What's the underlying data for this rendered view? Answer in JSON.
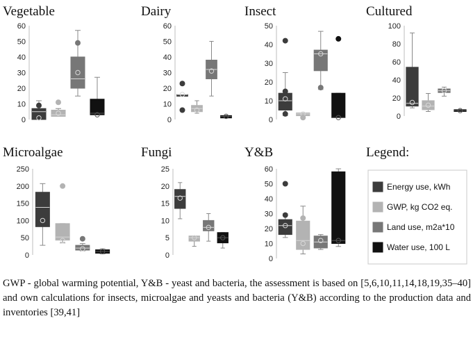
{
  "legend": {
    "title": "Legend:",
    "entries": [
      {
        "label": "Energy use, kWh",
        "color": "#3c3c3c"
      },
      {
        "label": "GWP, kg CO2 eq.",
        "color": "#b3b3b3"
      },
      {
        "label": "Land use, m2a*10",
        "color": "#777777"
      },
      {
        "label": "Water use, 100 L",
        "color": "#111111"
      }
    ]
  },
  "caption": "GWP - global warming potential, Y&B - yeast and bacteria, the assessment is based on [5,6,10,11,14,18,19,35–40] and own calculations for insects, microalgae and yeasts and bacteria (Y&B) according to the production data and inventories [39,41]",
  "chart_data": [
    {
      "type": "box",
      "title": "Vegetable",
      "ylim": [
        0,
        60
      ],
      "yticks": [
        "0",
        "10",
        "20",
        "30",
        "40",
        "50",
        "60"
      ],
      "boxes": [
        {
          "min": 0,
          "q1": 0,
          "median": 5,
          "q3": 7,
          "max": 12,
          "mean": 1,
          "outliers": [
            9
          ]
        },
        {
          "min": 2,
          "q1": 2,
          "median": 3,
          "q3": 6,
          "max": 7,
          "mean": 4,
          "outliers": [
            11
          ]
        },
        {
          "min": 15,
          "q1": 20,
          "median": 26,
          "q3": 40,
          "max": 57,
          "mean": 30,
          "outliers": [
            49
          ]
        },
        {
          "min": 3,
          "q1": 3,
          "median": 4,
          "q3": 13,
          "max": 27,
          "mean": 3,
          "outliers": []
        }
      ]
    },
    {
      "type": "box",
      "title": "Dairy",
      "ylim": [
        0,
        60
      ],
      "yticks": [
        "0",
        "10",
        "20",
        "30",
        "40",
        "50",
        "60"
      ],
      "boxes": [
        {
          "min": 16,
          "q1": 16,
          "median": 16,
          "q3": 16,
          "max": 16,
          "mean": 16,
          "outliers": [
            23,
            6
          ]
        },
        {
          "min": 4,
          "q1": 5,
          "median": 7,
          "q3": 9,
          "max": 12,
          "mean": 6,
          "outliers": []
        },
        {
          "min": 15,
          "q1": 26,
          "median": 32,
          "q3": 38,
          "max": 50,
          "mean": 31,
          "outliers": []
        },
        {
          "min": 1,
          "q1": 1,
          "median": 2,
          "q3": 2.5,
          "max": 2.5,
          "mean": 2,
          "outliers": []
        }
      ]
    },
    {
      "type": "box",
      "title": "Insect",
      "ylim": [
        0,
        50
      ],
      "yticks": [
        "0",
        "10",
        "20",
        "30",
        "40",
        "50"
      ],
      "boxes": [
        {
          "min": 2,
          "q1": 5,
          "median": 10,
          "q3": 14,
          "max": 25,
          "mean": 11,
          "outliers": [
            42,
            15,
            3
          ]
        },
        {
          "min": 2,
          "q1": 2,
          "median": 3,
          "q3": 3.5,
          "max": 3.5,
          "mean": 3,
          "outliers": [
            1
          ]
        },
        {
          "min": 16,
          "q1": 26,
          "median": 35,
          "q3": 37,
          "max": 47,
          "mean": 35,
          "outliers": [
            17
          ]
        },
        {
          "min": 1,
          "q1": 1,
          "median": 1,
          "q3": 14,
          "max": 14,
          "mean": 1,
          "outliers": [
            43
          ]
        }
      ]
    },
    {
      "type": "box",
      "title": "Cultured",
      "ylim": [
        0,
        100
      ],
      "yticks": [
        "0",
        "20",
        "40",
        "60",
        "80",
        "100"
      ],
      "boxes": [
        {
          "min": 9,
          "q1": 11,
          "median": 14,
          "q3": 54,
          "max": 92,
          "mean": 15,
          "outliers": []
        },
        {
          "min": 5,
          "q1": 7,
          "median": 11,
          "q3": 17,
          "max": 25,
          "mean": 12,
          "outliers": []
        },
        {
          "min": 22,
          "q1": 26,
          "median": 28,
          "q3": 30,
          "max": 32,
          "mean": 28,
          "outliers": []
        },
        {
          "min": 5,
          "q1": 5,
          "median": 6,
          "q3": 7,
          "max": 7,
          "mean": 6,
          "outliers": []
        }
      ]
    },
    {
      "type": "box",
      "title": "Microalgae",
      "ylim": [
        0,
        250
      ],
      "yticks": [
        "0",
        "50",
        "100",
        "150",
        "200",
        "250"
      ],
      "boxes": [
        {
          "min": 28,
          "q1": 82,
          "median": 138,
          "q3": 182,
          "max": 207,
          "mean": 100,
          "outliers": []
        },
        {
          "min": 35,
          "q1": 43,
          "median": 52,
          "q3": 91,
          "max": 91,
          "mean": 42,
          "outliers": [
            200
          ]
        },
        {
          "min": 12,
          "q1": 14,
          "median": 20,
          "q3": 28,
          "max": 33,
          "mean": 18,
          "outliers": [
            47
          ]
        },
        {
          "min": 3,
          "q1": 5,
          "median": 10,
          "q3": 15,
          "max": 18,
          "mean": 10,
          "outliers": []
        }
      ]
    },
    {
      "type": "box",
      "title": "Fungi",
      "ylim": [
        0,
        25
      ],
      "yticks": [
        "0",
        "5",
        "10",
        "15",
        "20",
        "25"
      ],
      "boxes": [
        {
          "min": 10.5,
          "q1": 13.5,
          "median": 17,
          "q3": 19,
          "max": 21,
          "mean": 16.5,
          "outliers": []
        },
        {
          "min": 2.5,
          "q1": 4,
          "median": 5,
          "q3": 5.5,
          "max": 5.5,
          "mean": 5,
          "outliers": []
        },
        {
          "min": 4,
          "q1": 7,
          "median": 8,
          "q3": 10,
          "max": 12,
          "mean": 8,
          "outliers": []
        },
        {
          "min": 2,
          "q1": 3.5,
          "median": 5,
          "q3": 6.5,
          "max": 6.5,
          "mean": 5,
          "outliers": []
        }
      ]
    },
    {
      "type": "box",
      "title": "Y&B",
      "ylim": [
        0,
        60
      ],
      "yticks": [
        "0",
        "10",
        "20",
        "30",
        "40",
        "50",
        "60"
      ],
      "boxes": [
        {
          "min": 14,
          "q1": 16,
          "median": 22,
          "q3": 26,
          "max": 30,
          "mean": 22,
          "outliers": [
            50,
            29
          ]
        },
        {
          "min": 3,
          "q1": 6,
          "median": 12,
          "q3": 25,
          "max": 35,
          "mean": 10,
          "outliers": [
            27
          ]
        },
        {
          "min": 6,
          "q1": 7,
          "median": 11,
          "q3": 15,
          "max": 16,
          "mean": 12,
          "outliers": []
        },
        {
          "min": 8,
          "q1": 10,
          "median": 12,
          "q3": 58,
          "max": 60,
          "mean": 12,
          "outliers": []
        }
      ]
    }
  ]
}
